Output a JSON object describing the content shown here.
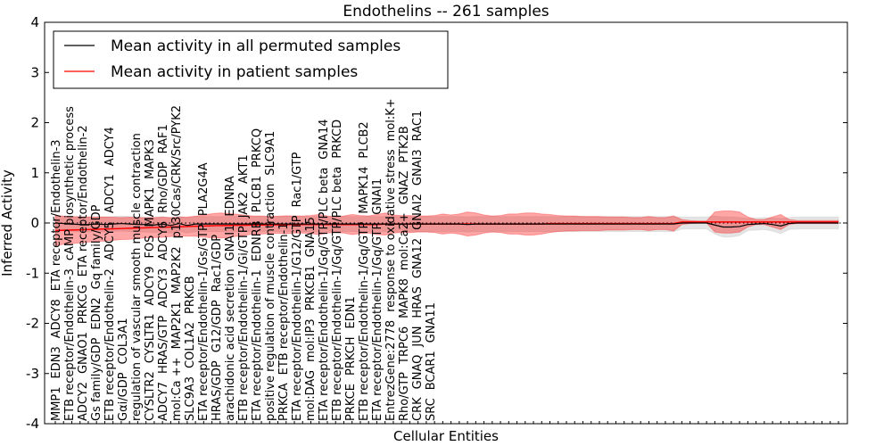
{
  "chart_data": {
    "type": "line",
    "title": "Endothelins -- 261 samples",
    "xlabel": "Cellular Entities",
    "ylabel": "Inferred Activity",
    "ylim": [
      -4,
      4
    ],
    "yticks": [
      "-4",
      "-3",
      "-2",
      "-1",
      "0",
      "1",
      "2",
      "3",
      "4"
    ],
    "ytick_values": [
      -4,
      -3,
      -2,
      -1,
      0,
      1,
      2,
      3,
      4
    ],
    "legend_position": "top-left",
    "legend": [
      "Mean activity in all permuted samples",
      "Mean activity in patient samples"
    ],
    "colors": {
      "permuted": "#000000",
      "patient": "#ff0000",
      "patient_band": "#ff0000",
      "permuted_band": "#bbbbbb"
    },
    "categories": [
      "MMP1",
      "EDN3",
      "ADCY8",
      "ETA receptor/Endothelin-3",
      "ETB receptor/Endothelin-3",
      "cAMP biosynthetic process",
      "ADCY2",
      "GNAO1",
      "PRKCG",
      "ETA receptor/Endothelin-2",
      "Gs family/GDP",
      "EDN2",
      "Gq family/GDP",
      "ETB receptor/Endothelin-2",
      "ADCY5",
      "ADCY1",
      "ADCY4",
      "Gαi/GDP",
      "COL3A1",
      "regulation of vascular smooth muscle contraction",
      "CYSLTR2",
      "CYSLTR1",
      "ADCY9",
      "FOS",
      "MAPK1",
      "MAPK3",
      "ADCY7",
      "HRAS/GTP",
      "ADCY3",
      "ADCY6",
      "Rho/GDP",
      "RAF1",
      "mol:Ca ++",
      "MAP2K1",
      "MAP2K2",
      "p130Cas/CRK/Src/PYK2",
      "SLC9A3",
      "COL1A2",
      "PRKCB",
      "ETA receptor/Endothelin-1/Gs/GTP",
      "PLA2G4A",
      "HRAS/GDP",
      "G12/GDP",
      "Rac1/GDP",
      "arachidonic acid secretion",
      "GNAI1",
      "EDNRA",
      "ETB receptor/Endothelin-1/Gi/GTP",
      "JAK2",
      "AKT1",
      "ETA receptor/Endothelin-1",
      "EDNRB",
      "PLCB1",
      "PRKCQ",
      "positive regulation of muscle contraction",
      "SLC9A1",
      "PRKCA",
      "ETB receptor/Endothelin-1",
      "ETA receptor/Endothelin-1/G12/GTP",
      "Rac1/GTP",
      "mol:DAG",
      "mol:IP3",
      "PRKCB1",
      "GNA15",
      "ETA receptor/Endothelin-1/Gq/GTP/PLC beta",
      "GNA14",
      "ETB receptor/Endothelin-1/Gq/GTP/PLC beta",
      "PRKCD",
      "PRKCE",
      "PRKCH",
      "EDN1",
      "ETB receptor/Endothelin-1/Gq/GTP",
      "MAPK14",
      "PLCB2",
      "ETA receptor/Endothelin-1/Gq/GTP",
      "GNAI1",
      "EntrezGene:2778",
      "response to oxidative stress",
      "mol:K+",
      "Rho/GTP",
      "TRPC6",
      "MAPK8",
      "mol:Ca2+",
      "GNAZ",
      "PTK2B",
      "CRK",
      "GNAQ",
      "JUN",
      "HRAS",
      "GNA12",
      "GNAI2",
      "GNAI3",
      "RAC1",
      "SRC",
      "BCAR1",
      "GNA11"
    ],
    "series": [
      {
        "name": "Mean activity in all permuted samples",
        "values": [
          0.0,
          -0.01,
          -0.02,
          -0.03,
          -0.03,
          -0.02,
          -0.03,
          -0.02,
          -0.01,
          -0.02,
          -0.03,
          -0.03,
          -0.04,
          -0.02,
          -0.05,
          -0.01,
          -0.05,
          -0.02,
          -0.02,
          -0.02,
          -0.02,
          -0.02,
          -0.02,
          -0.02,
          -0.02,
          -0.02,
          -0.02,
          -0.02,
          -0.02,
          -0.02,
          -0.02,
          -0.02,
          -0.02,
          -0.02,
          -0.02,
          -0.02,
          -0.02,
          -0.02,
          -0.02,
          -0.02,
          -0.02,
          -0.02,
          -0.02,
          -0.02,
          -0.02,
          -0.02,
          -0.02,
          -0.02,
          -0.02,
          -0.02,
          -0.03,
          -0.02,
          -0.02,
          -0.02,
          -0.02,
          -0.02,
          -0.02,
          -0.02,
          -0.02,
          -0.02,
          -0.02,
          -0.02,
          -0.02,
          -0.02,
          -0.02,
          -0.02,
          -0.02,
          -0.02,
          -0.02,
          -0.02,
          -0.02,
          -0.02,
          -0.02,
          -0.02,
          -0.02,
          -0.02,
          0,
          0,
          0,
          0,
          -0.04,
          -0.08,
          -0.08,
          -0.07,
          -0.03,
          -0.02,
          -0.01,
          -0.03,
          -0.06,
          -0.01,
          0,
          0,
          0,
          0,
          0,
          0
        ],
        "spread": [
          0.15,
          0.15,
          0.15,
          0.15,
          0.15,
          0.15,
          0.15,
          0.15,
          0.15,
          0.15,
          0.15,
          0.15,
          0.15,
          0.15,
          0.15,
          0.15,
          0.15,
          0.15,
          0.15,
          0.15,
          0.15,
          0.15,
          0.15,
          0.15,
          0.15,
          0.15,
          0.15,
          0.15,
          0.15,
          0.15,
          0.15,
          0.15,
          0.15,
          0.15,
          0.15,
          0.15,
          0.15,
          0.15,
          0.15,
          0.15,
          0.15,
          0.15,
          0.15,
          0.15,
          0.15,
          0.15,
          0.15,
          0.15,
          0.15,
          0.15,
          0.15,
          0.15,
          0.15,
          0.15,
          0.15,
          0.15,
          0.15,
          0.15,
          0.15,
          0.15,
          0.15,
          0.15,
          0.15,
          0.15,
          0.15,
          0.15,
          0.15,
          0.15,
          0.15,
          0.15,
          0.15,
          0.15,
          0.15,
          0.15,
          0.15,
          0.15,
          0.12,
          0.12,
          0.12,
          0.12,
          0.18,
          0.2,
          0.2,
          0.18,
          0.12,
          0.12,
          0.12,
          0.13,
          0.15,
          0.12,
          0.12,
          0.12,
          0.12,
          0.12,
          0.12,
          0.12
        ]
      },
      {
        "name": "Mean activity in patient samples",
        "values": [
          -0.15,
          -0.145,
          -0.14,
          -0.135,
          -0.13,
          -0.125,
          -0.12,
          -0.115,
          -0.11,
          -0.105,
          -0.1,
          -0.095,
          -0.09,
          -0.085,
          -0.08,
          -0.075,
          -0.07,
          -0.065,
          -0.06,
          -0.055,
          -0.05,
          -0.05,
          -0.045,
          -0.045,
          -0.04,
          -0.04,
          -0.04,
          -0.035,
          -0.035,
          -0.03,
          -0.03,
          -0.03,
          -0.03,
          -0.03,
          -0.03,
          -0.03,
          -0.03,
          -0.03,
          -0.03,
          -0.03,
          -0.02,
          -0.02,
          -0.02,
          -0.02,
          -0.02,
          -0.02,
          -0.02,
          -0.02,
          -0.02,
          -0.02,
          -0.02,
          -0.02,
          -0.02,
          -0.02,
          -0.02,
          -0.02,
          -0.02,
          -0.02,
          -0.02,
          -0.02,
          -0.01,
          -0.01,
          -0.01,
          -0.01,
          -0.01,
          -0.01,
          -0.01,
          -0.01,
          -0.01,
          -0.01,
          -0.01,
          -0.01,
          -0.01,
          -0.01,
          -0.01,
          -0.01,
          0.02,
          0.02,
          0.02,
          0.02,
          0.02,
          0.02,
          0.02,
          0.02,
          0.02,
          0.02,
          0.02,
          0.02,
          0.02,
          0.02,
          0.02,
          0.02,
          0.02,
          0.02,
          0.02,
          0.02
        ],
        "spread": [
          0.3,
          0.28,
          0.27,
          0.26,
          0.25,
          0.24,
          0.24,
          0.23,
          0.22,
          0.22,
          0.21,
          0.2,
          0.2,
          0.2,
          0.19,
          0.19,
          0.19,
          0.2,
          0.22,
          0.24,
          0.25,
          0.24,
          0.22,
          0.2,
          0.18,
          0.18,
          0.17,
          0.17,
          0.18,
          0.17,
          0.17,
          0.18,
          0.2,
          0.17,
          0.16,
          0.17,
          0.2,
          0.18,
          0.17,
          0.2,
          0.22,
          0.18,
          0.17,
          0.17,
          0.16,
          0.16,
          0.17,
          0.2,
          0.18,
          0.2,
          0.24,
          0.22,
          0.18,
          0.16,
          0.17,
          0.2,
          0.2,
          0.22,
          0.22,
          0.2,
          0.18,
          0.16,
          0.15,
          0.15,
          0.14,
          0.14,
          0.14,
          0.13,
          0.13,
          0.13,
          0.12,
          0.12,
          0.14,
          0.12,
          0.12,
          0.15,
          0.05,
          0.03,
          0.02,
          0.02,
          0.2,
          0.22,
          0.22,
          0.2,
          0.1,
          0.05,
          0.05,
          0.1,
          0.15,
          0.05,
          0.03,
          0.03,
          0.03,
          0.03,
          0.03,
          0.03
        ]
      }
    ]
  }
}
